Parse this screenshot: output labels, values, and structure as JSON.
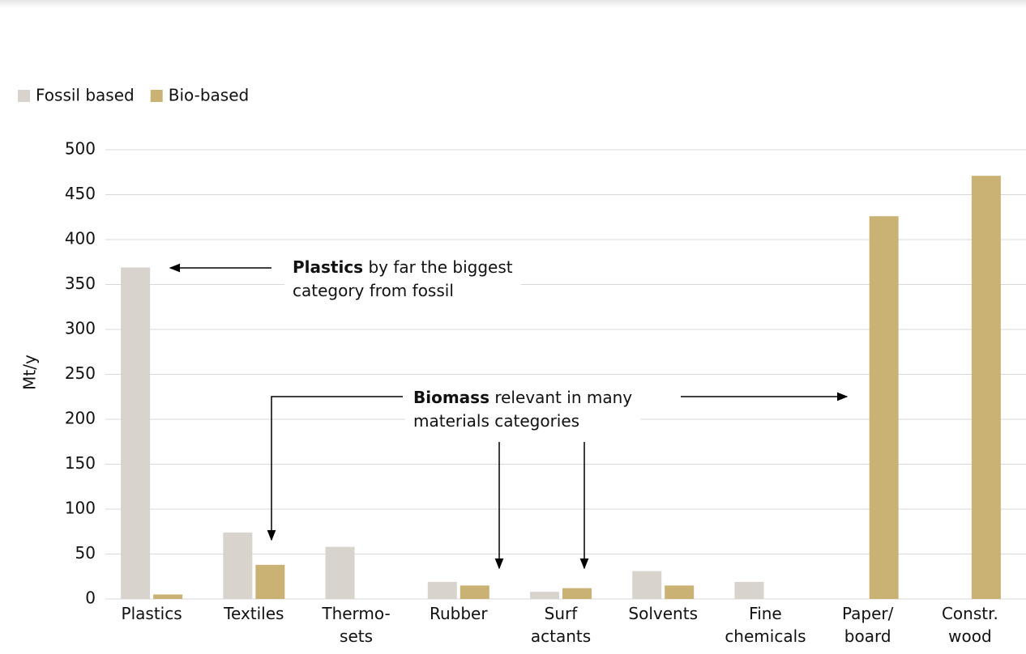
{
  "chart_data": {
    "type": "bar",
    "categories": [
      "Plastics",
      "Textiles",
      "Thermo-\nsets",
      "Rubber",
      "Surf\nactants",
      "Solvents",
      "Fine\nchemicals",
      "Paper/\nboard",
      "Constr.\nwood"
    ],
    "series": [
      {
        "name": "Fossil based",
        "color": "#d9d3ce",
        "values": [
          369,
          74,
          58,
          19,
          8,
          31,
          19,
          0,
          0
        ]
      },
      {
        "name": "Bio-based",
        "color": "#c9b273",
        "values": [
          5,
          38,
          0,
          15,
          12,
          15,
          0,
          426,
          471
        ]
      }
    ],
    "y_label": "Mt/y",
    "ylim": [
      0,
      500
    ],
    "yticks": [
      0,
      50,
      100,
      150,
      200,
      250,
      300,
      350,
      400,
      450,
      500
    ],
    "grid": true,
    "annotations": [
      {
        "bold": "Plastics",
        "lines": [
          " by far the biggest",
          "category from fossil"
        ]
      },
      {
        "bold": "Biomass",
        "lines": [
          " relevant in many",
          "materials categories"
        ]
      }
    ]
  }
}
